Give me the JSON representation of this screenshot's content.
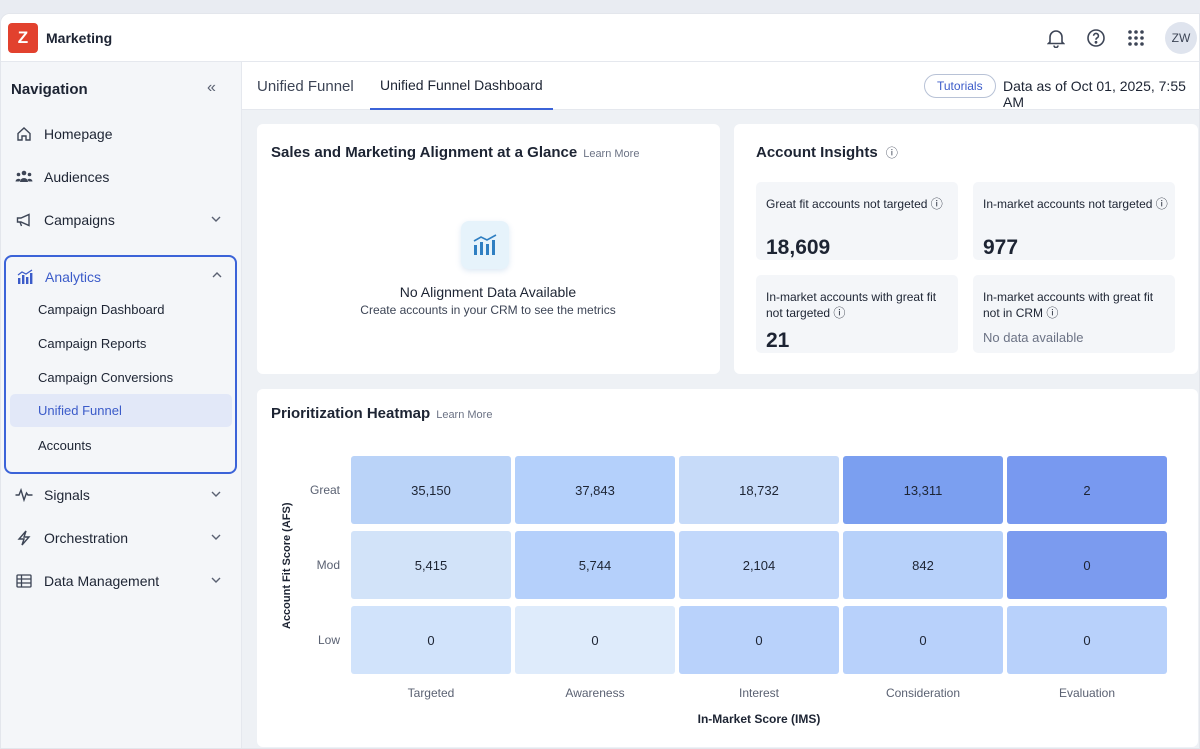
{
  "app": {
    "logo_letter": "Z",
    "name": "Marketing",
    "avatar": "ZW"
  },
  "header_icons": [
    "bell-icon",
    "help-icon",
    "apps-grid-icon"
  ],
  "sidebar": {
    "heading": "Navigation",
    "items": [
      {
        "label": "Homepage",
        "icon": "home-icon"
      },
      {
        "label": "Audiences",
        "icon": "users-icon"
      },
      {
        "label": "Campaigns",
        "icon": "megaphone-icon"
      },
      {
        "label": "Analytics",
        "icon": "analytics-icon"
      },
      {
        "label": "Signals",
        "icon": "pulse-icon"
      },
      {
        "label": "Orchestration",
        "icon": "bolt-icon"
      },
      {
        "label": "Data Management",
        "icon": "table-icon"
      }
    ],
    "analytics_sub": [
      "Campaign Dashboard",
      "Campaign Reports",
      "Campaign Conversions",
      "Unified Funnel",
      "Accounts"
    ],
    "active_sub": "Unified Funnel"
  },
  "tabs": {
    "section": "Unified Funnel",
    "active": "Unified Funnel Dashboard"
  },
  "tutorials_label": "Tutorials",
  "data_as_of": "Data as of Oct 01, 2025, 7:55 AM",
  "alignment": {
    "title": "Sales and Marketing Alignment at a Glance",
    "learn_more": "Learn More",
    "empty_title": "No Alignment Data Available",
    "empty_sub": "Create accounts in your CRM to see the metrics"
  },
  "insights": {
    "title": "Account Insights",
    "tiles": [
      {
        "label": "Great fit accounts not targeted",
        "value": "18,609"
      },
      {
        "label": "In-market accounts not targeted",
        "value": "977"
      },
      {
        "label": "In-market accounts with great fit not targeted",
        "value": "21"
      },
      {
        "label": "In-market accounts with great fit not in CRM",
        "value": "No data available"
      }
    ]
  },
  "heatmap": {
    "title": "Prioritization Heatmap",
    "learn_more": "Learn More",
    "y_axis": "Account Fit Score (AFS)",
    "x_axis": "In-Market Score (IMS)",
    "rows": [
      "Great",
      "Mod",
      "Low"
    ],
    "columns": [
      "Targeted",
      "Awareness",
      "Interest",
      "Consideration",
      "Evaluation"
    ],
    "values": [
      [
        "35,150",
        "37,843",
        "18,732",
        "13,311",
        "2"
      ],
      [
        "5,415",
        "5,744",
        "2,104",
        "842",
        "0"
      ],
      [
        "0",
        "0",
        "0",
        "0",
        "0"
      ]
    ],
    "colors": [
      [
        "#bad3f8",
        "#b4d0fb",
        "#c7dbf9",
        "#7b9ff0",
        "#7899f0"
      ],
      [
        "#d2e3f9",
        "#b5d0fb",
        "#c2d8fb",
        "#b7d1fa",
        "#7b9bef"
      ],
      [
        "#d1e3fb",
        "#deebfb",
        "#b9d2fb",
        "#b8d1fb",
        "#b8d1fb"
      ]
    ]
  }
}
